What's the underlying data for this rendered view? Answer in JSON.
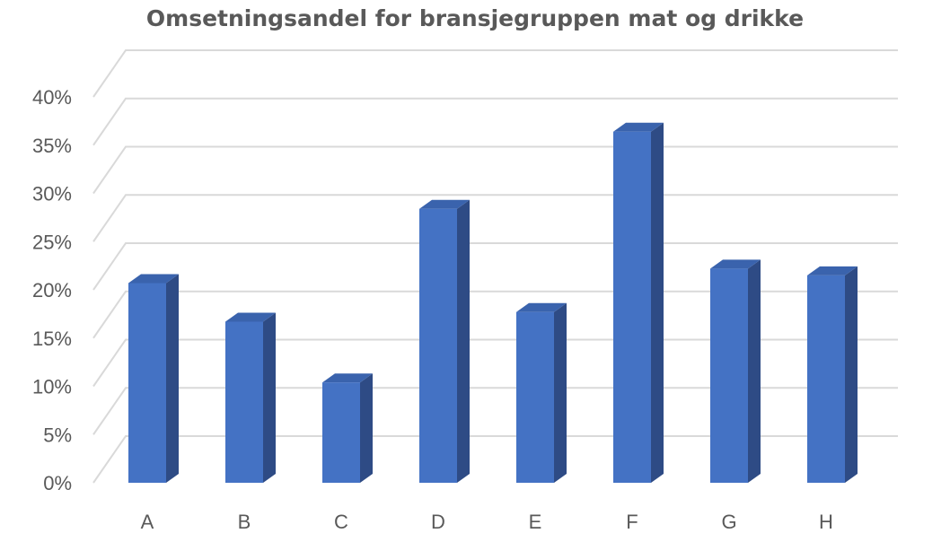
{
  "chart_data": {
    "type": "bar",
    "title": "Omsetningsandel for bransjegruppen mat og drikke",
    "categories": [
      "A",
      "B",
      "C",
      "D",
      "E",
      "F",
      "G",
      "H"
    ],
    "values": [
      20.7,
      16.7,
      10.4,
      28.4,
      17.7,
      36.4,
      22.2,
      21.5
    ],
    "y_unit": "%",
    "yticks": [
      "0%",
      "5%",
      "10%",
      "15%",
      "20%",
      "25%",
      "30%",
      "35%",
      "40%"
    ],
    "ylim": [
      0,
      40
    ],
    "grid": true,
    "legend": "none",
    "style": "3d-column",
    "colors": {
      "front": "#4472C4",
      "side": "#2E4B85",
      "top": "#3A63AD",
      "grid": "#D9D9D9",
      "text": "#595959"
    }
  }
}
